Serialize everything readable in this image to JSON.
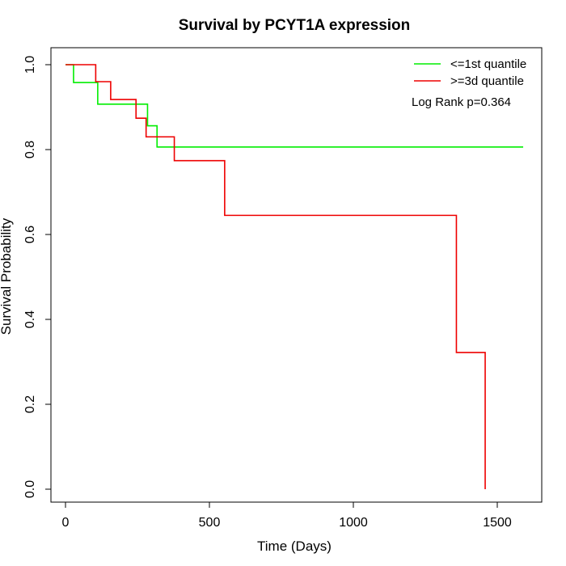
{
  "chart_data": {
    "type": "line",
    "title": "Survival by PCYT1A expression",
    "xlabel": "Time (Days)",
    "ylabel": "Survival Probability",
    "xlim": [
      0,
      1600
    ],
    "ylim": [
      0,
      1.0
    ],
    "x_ticks": [
      0,
      500,
      1000,
      1500
    ],
    "x_tick_labels": [
      "0",
      "500",
      "1000",
      "1500"
    ],
    "y_ticks": [
      0.0,
      0.2,
      0.4,
      0.6,
      0.8,
      1.0
    ],
    "y_tick_labels": [
      "0.0",
      "0.2",
      "0.4",
      "0.6",
      "0.8",
      "1.0"
    ],
    "grid": false,
    "legend_position": "top-right",
    "annotation": "Log Rank p=0.364",
    "series": [
      {
        "name": "<=1st quantile",
        "color": "#00ee00",
        "step": true,
        "x": [
          0,
          28,
          112,
          285,
          318,
          1590
        ],
        "y": [
          1.0,
          0.958,
          0.907,
          0.856,
          0.806,
          0.806
        ]
      },
      {
        "name": ">=3d quantile",
        "color": "#ee0000",
        "step": true,
        "x": [
          0,
          105,
          157,
          245,
          280,
          378,
          553,
          1358,
          1458
        ],
        "y": [
          1.0,
          0.96,
          0.918,
          0.874,
          0.83,
          0.774,
          0.645,
          0.322,
          0.0
        ]
      }
    ]
  }
}
